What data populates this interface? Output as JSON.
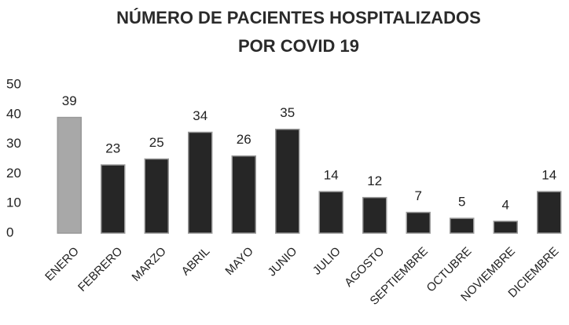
{
  "chart_data": {
    "type": "bar",
    "title": "NÚMERO DE PACIENTES HOSPITALIZADOS",
    "subtitle": "POR COVID 19",
    "categories": [
      "ENERO",
      "FEBRERO",
      "MARZO",
      "ABRIL",
      "MAYO",
      "JUNIO",
      "JULIO",
      "AGOSTO",
      "SEPTIEMBRE",
      "OCTUBRE",
      "NOVIEMBRE",
      "DICIEMBRE"
    ],
    "values": [
      39,
      23,
      25,
      34,
      26,
      35,
      14,
      12,
      7,
      5,
      4,
      14
    ],
    "colors": [
      "#a8a8a8",
      "#262626",
      "#262626",
      "#262626",
      "#262626",
      "#262626",
      "#262626",
      "#262626",
      "#262626",
      "#262626",
      "#262626",
      "#262626"
    ],
    "ylim": [
      0,
      50
    ],
    "yticks": [
      0,
      10,
      20,
      30,
      40,
      50
    ],
    "grid": false
  }
}
